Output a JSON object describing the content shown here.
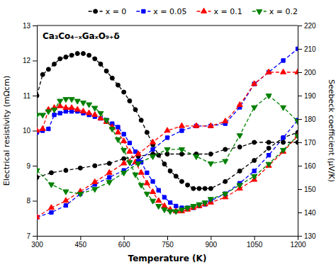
{
  "chart_data": {
    "type": "line",
    "xlabel": "Temperature (K)",
    "ylabel": "Electrical resistivity (mΩcm)",
    "y2label": "Seebeck coefficient (μV/K)",
    "annotation": "Ca₃Co₄₋ₓGaₓO₉₊δ",
    "xlim": [
      300,
      1200
    ],
    "xticks": [
      300,
      450,
      600,
      750,
      900,
      1050,
      1200
    ],
    "ylim": [
      7,
      13
    ],
    "yticks": [
      7,
      8,
      9,
      10,
      11,
      12,
      13
    ],
    "y2lim": [
      130,
      220
    ],
    "y2ticks": [
      130,
      140,
      150,
      160,
      170,
      180,
      190,
      200,
      210,
      220
    ],
    "legend": "upper right",
    "series": [
      {
        "name": "x = 0",
        "color": "black",
        "marker": "circle",
        "line_style": "dashed",
        "x": [
          300,
          320,
          340,
          360,
          380,
          400,
          420,
          440,
          460,
          480,
          500,
          520,
          540,
          560,
          580,
          600,
          620,
          640,
          660,
          680,
          700,
          720,
          740,
          760,
          780,
          800,
          820,
          840,
          860,
          880,
          900,
          950,
          1000,
          1050,
          1100,
          1150,
          1200
        ],
        "values": [
          11.0,
          11.6,
          11.75,
          11.9,
          12.05,
          12.1,
          12.15,
          12.2,
          12.2,
          12.15,
          12.05,
          11.9,
          11.7,
          11.5,
          11.3,
          11.1,
          10.85,
          10.6,
          10.3,
          9.95,
          9.6,
          9.3,
          9.05,
          8.85,
          8.7,
          8.55,
          8.45,
          8.35,
          8.35,
          8.35,
          8.35,
          8.55,
          8.85,
          9.15,
          9.5,
          9.8,
          9.95
        ]
      },
      {
        "name": "x = 0.05",
        "color": "blue",
        "marker": "square",
        "line_style": "dashed",
        "x": [
          300,
          320,
          340,
          360,
          380,
          400,
          420,
          440,
          460,
          480,
          500,
          520,
          540,
          560,
          580,
          600,
          620,
          640,
          660,
          680,
          700,
          720,
          740,
          760,
          780,
          800,
          820,
          840,
          860,
          880,
          900,
          950,
          1000,
          1050,
          1100,
          1150,
          1200
        ],
        "values": [
          9.95,
          10.0,
          10.05,
          10.45,
          10.5,
          10.55,
          10.55,
          10.55,
          10.5,
          10.45,
          10.4,
          10.35,
          10.3,
          10.2,
          10.1,
          9.9,
          9.65,
          9.4,
          9.1,
          8.8,
          8.55,
          8.3,
          8.1,
          7.95,
          7.85,
          7.8,
          7.8,
          7.8,
          7.85,
          7.9,
          8.0,
          8.2,
          8.5,
          8.85,
          9.3,
          9.8,
          10.3
        ]
      },
      {
        "name": "x = 0.1",
        "color": "red",
        "marker": "triangle-up",
        "line_style": "dashed",
        "x": [
          300,
          320,
          340,
          360,
          380,
          400,
          420,
          440,
          460,
          480,
          500,
          520,
          540,
          560,
          580,
          600,
          620,
          640,
          660,
          680,
          700,
          720,
          740,
          760,
          780,
          800,
          820,
          840,
          860,
          880,
          900,
          950,
          1000,
          1050,
          1100,
          1150,
          1200
        ],
        "values": [
          10.0,
          10.05,
          10.6,
          10.65,
          10.7,
          10.65,
          10.65,
          10.6,
          10.55,
          10.5,
          10.45,
          10.35,
          10.25,
          10.1,
          9.95,
          9.7,
          9.4,
          9.1,
          8.8,
          8.5,
          8.25,
          8.0,
          7.85,
          7.75,
          7.7,
          7.7,
          7.75,
          7.8,
          7.85,
          7.9,
          7.95,
          8.1,
          8.35,
          8.6,
          9.0,
          9.4,
          9.85
        ]
      },
      {
        "name": "x = 0.2",
        "color": "green",
        "marker": "triangle-down",
        "line_style": "dashed",
        "x": [
          300,
          320,
          340,
          360,
          380,
          400,
          420,
          440,
          460,
          480,
          500,
          520,
          540,
          560,
          580,
          600,
          620,
          640,
          660,
          680,
          700,
          720,
          740,
          760,
          780,
          800,
          820,
          840,
          860,
          880,
          900,
          950,
          1000,
          1050,
          1100,
          1150,
          1200
        ],
        "values": [
          10.45,
          10.45,
          10.55,
          10.6,
          10.85,
          10.9,
          10.9,
          10.85,
          10.8,
          10.75,
          10.65,
          10.5,
          10.3,
          10.05,
          9.75,
          9.45,
          9.1,
          8.75,
          8.45,
          8.2,
          8.0,
          7.85,
          7.75,
          7.7,
          7.7,
          7.75,
          7.8,
          7.85,
          7.9,
          7.95,
          8.05,
          8.2,
          8.45,
          8.7,
          9.05,
          9.45,
          9.85
        ]
      },
      {
        "axis": "y2",
        "color": "black",
        "marker": "circle",
        "line_style": "dashed",
        "x": [
          300,
          350,
          400,
          450,
          500,
          550,
          600,
          650,
          700,
          750,
          800,
          850,
          900,
          950,
          1000,
          1050,
          1100,
          1150,
          1200
        ],
        "values": [
          155,
          157,
          158,
          159,
          160,
          161,
          163,
          164,
          165,
          165,
          165,
          165,
          165,
          167,
          168,
          170,
          170,
          170,
          170
        ]
      },
      {
        "axis": "y2",
        "color": "blue",
        "marker": "square",
        "line_style": "dashed",
        "x": [
          300,
          350,
          400,
          450,
          500,
          550,
          600,
          650,
          700,
          750,
          800,
          850,
          900,
          950,
          1000,
          1050,
          1100,
          1150,
          1200
        ],
        "values": [
          138,
          140,
          143,
          148,
          152,
          155,
          158,
          162,
          167,
          172,
          175,
          177,
          177,
          178,
          185,
          195,
          200,
          205,
          210
        ]
      },
      {
        "axis": "y2",
        "color": "red",
        "marker": "triangle-up",
        "line_style": "dashed",
        "x": [
          300,
          350,
          400,
          450,
          500,
          550,
          600,
          650,
          700,
          750,
          800,
          850,
          900,
          950,
          1000,
          1050,
          1100,
          1150,
          1200
        ],
        "values": [
          138,
          142,
          145,
          149,
          153,
          157,
          161,
          165,
          170,
          175,
          177,
          177,
          177,
          179,
          186,
          195,
          200,
          200,
          200
        ]
      },
      {
        "axis": "y2",
        "color": "green",
        "marker": "triangle-down",
        "line_style": "dashed",
        "x": [
          300,
          350,
          400,
          450,
          500,
          550,
          600,
          650,
          700,
          750,
          800,
          850,
          900,
          950,
          1000,
          1050,
          1100,
          1150,
          1200
        ],
        "values": [
          158,
          152,
          149,
          148,
          150,
          153,
          157,
          161,
          164,
          167,
          167,
          164,
          161,
          162,
          173,
          185,
          190,
          185,
          179
        ]
      }
    ]
  }
}
